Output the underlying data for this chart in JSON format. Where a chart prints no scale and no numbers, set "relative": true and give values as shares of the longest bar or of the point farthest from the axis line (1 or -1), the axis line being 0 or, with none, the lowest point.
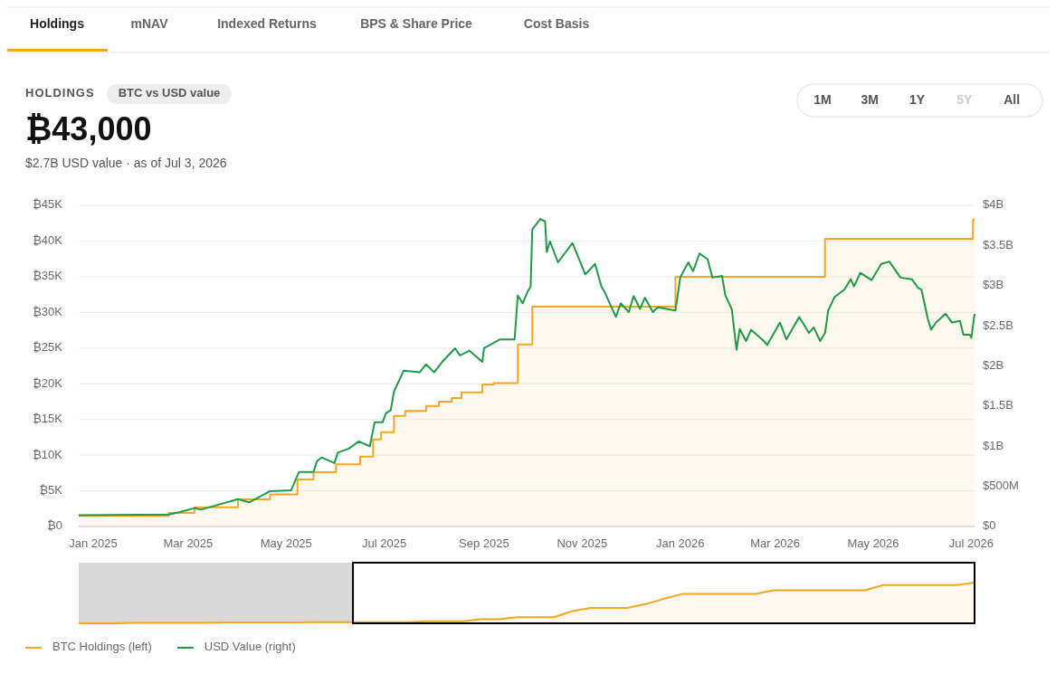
{
  "chart_data": [
    {
      "type": "line",
      "title": "₿43,000",
      "subtitle": "$2.7B USD value  ·  as of Jul 3, 2026",
      "annotations": [
        "Holdings",
        "mNAV",
        "Indexed Returns",
        "BPS & Share Price",
        "Cost Basis",
        "HOLDINGS",
        "BTC vs USD value",
        "1M",
        "3M",
        "1Y",
        "5Y",
        "All"
      ],
      "xlim": [
        "2024-12-23",
        "2026-07-03"
      ],
      "xticks": [
        {
          "value": "2025-01-01",
          "label": "Jan 2025"
        },
        {
          "value": "2025-03-01",
          "label": "Mar 2025"
        },
        {
          "value": "2025-05-01",
          "label": "May 2025"
        },
        {
          "value": "2025-07-01",
          "label": "Jul 2025"
        },
        {
          "value": "2025-09-01",
          "label": "Sep 2025"
        },
        {
          "value": "2025-11-01",
          "label": "Nov 2025"
        },
        {
          "value": "2026-01-01",
          "label": "Jan 2026"
        },
        {
          "value": "2026-03-01",
          "label": "Mar 2026"
        },
        {
          "value": "2026-05-01",
          "label": "May 2026"
        },
        {
          "value": "2026-07-01",
          "label": "Jul 2026"
        }
      ],
      "ylim": [
        0,
        45000
      ],
      "yticks": [
        {
          "value": 0,
          "label": "₿0"
        },
        {
          "value": 5000,
          "label": "₿5K"
        },
        {
          "value": 10000,
          "label": "₿10K"
        },
        {
          "value": 15000,
          "label": "₿15K"
        },
        {
          "value": 20000,
          "label": "₿20K"
        },
        {
          "value": 25000,
          "label": "₿25K"
        },
        {
          "value": 30000,
          "label": "₿30K"
        },
        {
          "value": 35000,
          "label": "₿35K"
        },
        {
          "value": 40000,
          "label": "₿40K"
        },
        {
          "value": 45000,
          "label": "₿45K"
        }
      ],
      "y2lim": [
        0,
        4000000000
      ],
      "y2ticks": [
        {
          "value": 0,
          "label": "$0"
        },
        {
          "value": 500000000,
          "label": "$500M"
        },
        {
          "value": 1000000000,
          "label": "$1B"
        },
        {
          "value": 1500000000,
          "label": "$1.5B"
        },
        {
          "value": 2000000000,
          "label": "$2B"
        },
        {
          "value": 2500000000,
          "label": "$2.5B"
        },
        {
          "value": 3000000000,
          "label": "$3B"
        },
        {
          "value": 3500000000,
          "label": "$3.5B"
        },
        {
          "value": 4000000000,
          "label": "$4B"
        }
      ],
      "grid": "y",
      "legend": "bottom left",
      "series": [
        {
          "name": "BTC Holdings (left)",
          "type": "area",
          "color": "#f5a623",
          "x": [
            "2024-12-23",
            "2025-02-17",
            "2025-02-17",
            "2025-03-05",
            "2025-03-05",
            "2025-04-01",
            "2025-04-01",
            "2025-04-21",
            "2025-04-21",
            "2025-05-08",
            "2025-05-08",
            "2025-05-18",
            "2025-05-18",
            "2025-06-01",
            "2025-06-01",
            "2025-06-16",
            "2025-06-16",
            "2025-06-24",
            "2025-06-24",
            "2025-06-29",
            "2025-06-29",
            "2025-07-07",
            "2025-07-07",
            "2025-07-14",
            "2025-07-14",
            "2025-07-27",
            "2025-07-27",
            "2025-08-04",
            "2025-08-04",
            "2025-08-12",
            "2025-08-12",
            "2025-08-18",
            "2025-08-18",
            "2025-08-31",
            "2025-08-31",
            "2025-09-07",
            "2025-09-07",
            "2025-09-22",
            "2025-09-22",
            "2025-10-01",
            "2025-10-01",
            "2025-12-29",
            "2025-12-29",
            "2026-04-01",
            "2026-04-01",
            "2026-07-02",
            "2026-07-02",
            "2026-07-03"
          ],
          "values": [
            1500,
            1500,
            1900,
            1900,
            2700,
            2700,
            3800,
            3800,
            4500,
            4500,
            6600,
            6600,
            7600,
            7600,
            8700,
            8700,
            9800,
            9800,
            12200,
            12200,
            13200,
            13200,
            15500,
            15500,
            16200,
            16200,
            16900,
            16900,
            17500,
            17500,
            18000,
            18000,
            18800,
            18800,
            19900,
            19900,
            20100,
            20100,
            25500,
            25500,
            30800,
            30800,
            35000,
            35000,
            40300,
            40300,
            43000,
            43000
          ]
        },
        {
          "name": "USD Value (right)",
          "type": "line",
          "axis": "y2",
          "color": "#1f9a48",
          "x": [
            "2024-12-23",
            "2025-02-17",
            "2025-02-24",
            "2025-03-05",
            "2025-03-09",
            "2025-04-01",
            "2025-04-08",
            "2025-04-21",
            "2025-05-04",
            "2025-05-09",
            "2025-05-18",
            "2025-05-20",
            "2025-05-23",
            "2025-05-31",
            "2025-06-02",
            "2025-06-09",
            "2025-06-15",
            "2025-06-22",
            "2025-06-25",
            "2025-06-30",
            "2025-07-02",
            "2025-07-05",
            "2025-07-07",
            "2025-07-10",
            "2025-07-13",
            "2025-07-23",
            "2025-07-27",
            "2025-08-01",
            "2025-08-06",
            "2025-08-14",
            "2025-08-17",
            "2025-08-23",
            "2025-08-31",
            "2025-09-01",
            "2025-09-11",
            "2025-09-20",
            "2025-09-22",
            "2025-09-25",
            "2025-09-28",
            "2025-09-30",
            "2025-10-01",
            "2025-10-06",
            "2025-10-09",
            "2025-10-10",
            "2025-10-12",
            "2025-10-17",
            "2025-10-26",
            "2025-11-03",
            "2025-11-09",
            "2025-11-13",
            "2025-11-15",
            "2025-11-22",
            "2025-11-25",
            "2025-11-30",
            "2025-12-03",
            "2025-12-07",
            "2025-12-10",
            "2025-12-15",
            "2025-12-18",
            "2025-12-29",
            "2026-01-01",
            "2026-01-06",
            "2026-01-09",
            "2026-01-13",
            "2026-01-18",
            "2026-01-21",
            "2026-01-27",
            "2026-01-29",
            "2026-02-02",
            "2026-02-05",
            "2026-02-07",
            "2026-02-11",
            "2026-02-14",
            "2026-02-22",
            "2026-02-24",
            "2026-03-04",
            "2026-03-08",
            "2026-03-16",
            "2026-03-22",
            "2026-03-25",
            "2026-03-29",
            "2026-04-01",
            "2026-04-03",
            "2026-04-07",
            "2026-04-13",
            "2026-04-17",
            "2026-04-19",
            "2026-04-23",
            "2026-04-30",
            "2026-05-06",
            "2026-05-11",
            "2026-05-18",
            "2026-05-25",
            "2026-05-29",
            "2026-05-31",
            "2026-06-04",
            "2026-06-06",
            "2026-06-09",
            "2026-06-15",
            "2026-06-19",
            "2026-06-24",
            "2026-06-26",
            "2026-06-30",
            "2026-07-01",
            "2026-07-03"
          ],
          "values": [
            140000000.0,
            150000000.0,
            180000000.0,
            230000000.0,
            210000000.0,
            340000000.0,
            300000000.0,
            440000000.0,
            450000000.0,
            680000000.0,
            680000000.0,
            810000000.0,
            860000000.0,
            790000000.0,
            920000000.0,
            970000000.0,
            1060000000.0,
            1000000000.0,
            1300000000.0,
            1300000000.0,
            1410000000.0,
            1450000000.0,
            1680000000.0,
            1810000000.0,
            1940000000.0,
            1920000000.0,
            2020000000.0,
            1920000000.0,
            2050000000.0,
            2220000000.0,
            2130000000.0,
            2190000000.0,
            2050000000.0,
            2220000000.0,
            2330000000.0,
            2330000000.0,
            2880000000.0,
            2780000000.0,
            2920000000.0,
            2990000000.0,
            3700000000.0,
            3830000000.0,
            3800000000.0,
            3420000000.0,
            3550000000.0,
            3290000000.0,
            3530000000.0,
            3140000000.0,
            3270000000.0,
            2990000000.0,
            2920000000.0,
            2610000000.0,
            2780000000.0,
            2670000000.0,
            2870000000.0,
            2710000000.0,
            2850000000.0,
            2670000000.0,
            2730000000.0,
            2690000000.0,
            3100000000.0,
            3290000000.0,
            3180000000.0,
            3400000000.0,
            3330000000.0,
            3100000000.0,
            3120000000.0,
            2880000000.0,
            2710000000.0,
            2200000000.0,
            2460000000.0,
            2310000000.0,
            2450000000.0,
            2310000000.0,
            2260000000.0,
            2540000000.0,
            2330000000.0,
            2610000000.0,
            2410000000.0,
            2480000000.0,
            2310000000.0,
            2410000000.0,
            2690000000.0,
            2860000000.0,
            2950000000.0,
            3080000000.0,
            2990000000.0,
            3160000000.0,
            3070000000.0,
            3270000000.0,
            3300000000.0,
            3100000000.0,
            3080000000.0,
            2970000000.0,
            2950000000.0,
            2580000000.0,
            2450000000.0,
            2540000000.0,
            2650000000.0,
            2540000000.0,
            2560000000.0,
            2390000000.0,
            2390000000.0,
            2350000000.0,
            2650000000.0
          ]
        }
      ]
    },
    {
      "type": "area",
      "relative": true,
      "color": "#f5a623",
      "categories": [
        null,
        null,
        null,
        null,
        null,
        null,
        null,
        null,
        null,
        null,
        null,
        null,
        null,
        null,
        null,
        null,
        null,
        null,
        null,
        null,
        null,
        null,
        null,
        null,
        null,
        null,
        null,
        null,
        null,
        null,
        null,
        null,
        null,
        null,
        null,
        null,
        null,
        null,
        null,
        null,
        null,
        null,
        null,
        null,
        null,
        null,
        null,
        null,
        null,
        null
      ],
      "values": [
        0.0,
        0.0,
        0.0,
        0.01,
        0.01,
        0.01,
        0.01,
        0.01,
        0.02,
        0.02,
        0.02,
        0.02,
        0.02,
        0.03,
        0.03,
        0.03,
        0.03,
        0.03,
        0.03,
        0.05,
        0.05,
        0.05,
        0.1,
        0.1,
        0.15,
        0.15,
        0.15,
        0.3,
        0.38,
        0.38,
        0.38,
        0.47,
        0.6,
        0.72,
        0.72,
        0.72,
        0.72,
        0.72,
        0.81,
        0.81,
        0.81,
        0.81,
        0.81,
        0.81,
        0.94,
        0.94,
        0.94,
        0.94,
        0.94,
        1.0
      ]
    }
  ]
}
